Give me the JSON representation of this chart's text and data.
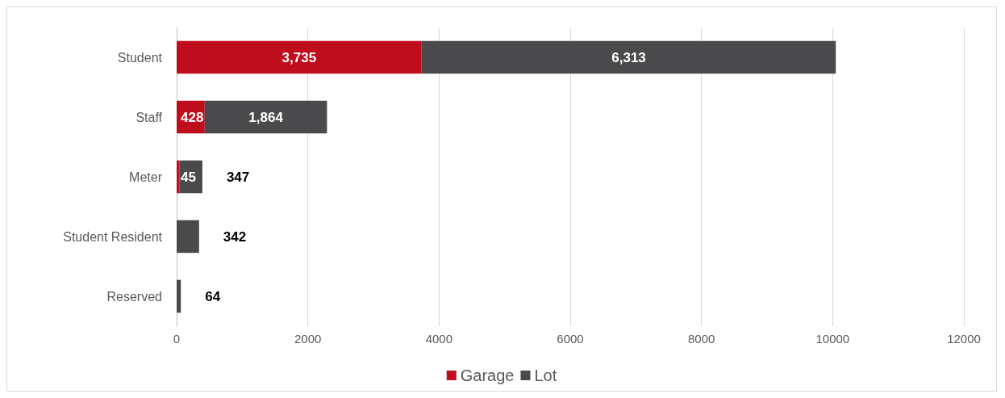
{
  "chart_data": {
    "type": "bar",
    "orientation": "horizontal",
    "stacked": true,
    "categories": [
      "Student",
      "Staff",
      "Meter",
      "Student Resident",
      "Reserved"
    ],
    "series": [
      {
        "name": "Garage",
        "color": "#c00d1e",
        "values": [
          3735,
          428,
          45,
          null,
          null
        ],
        "value_labels": [
          "3,735",
          "428",
          "45",
          null,
          null
        ]
      },
      {
        "name": "Lot",
        "color": "#4a4a4c",
        "values": [
          6313,
          1864,
          347,
          342,
          64
        ],
        "value_labels": [
          "6,313",
          "1,864",
          "347",
          "342",
          "64"
        ]
      }
    ],
    "xlim": [
      0,
      12000
    ],
    "xticks": [
      0,
      2000,
      4000,
      6000,
      8000,
      10000,
      12000
    ],
    "grid": "x",
    "legend": "bottom"
  }
}
